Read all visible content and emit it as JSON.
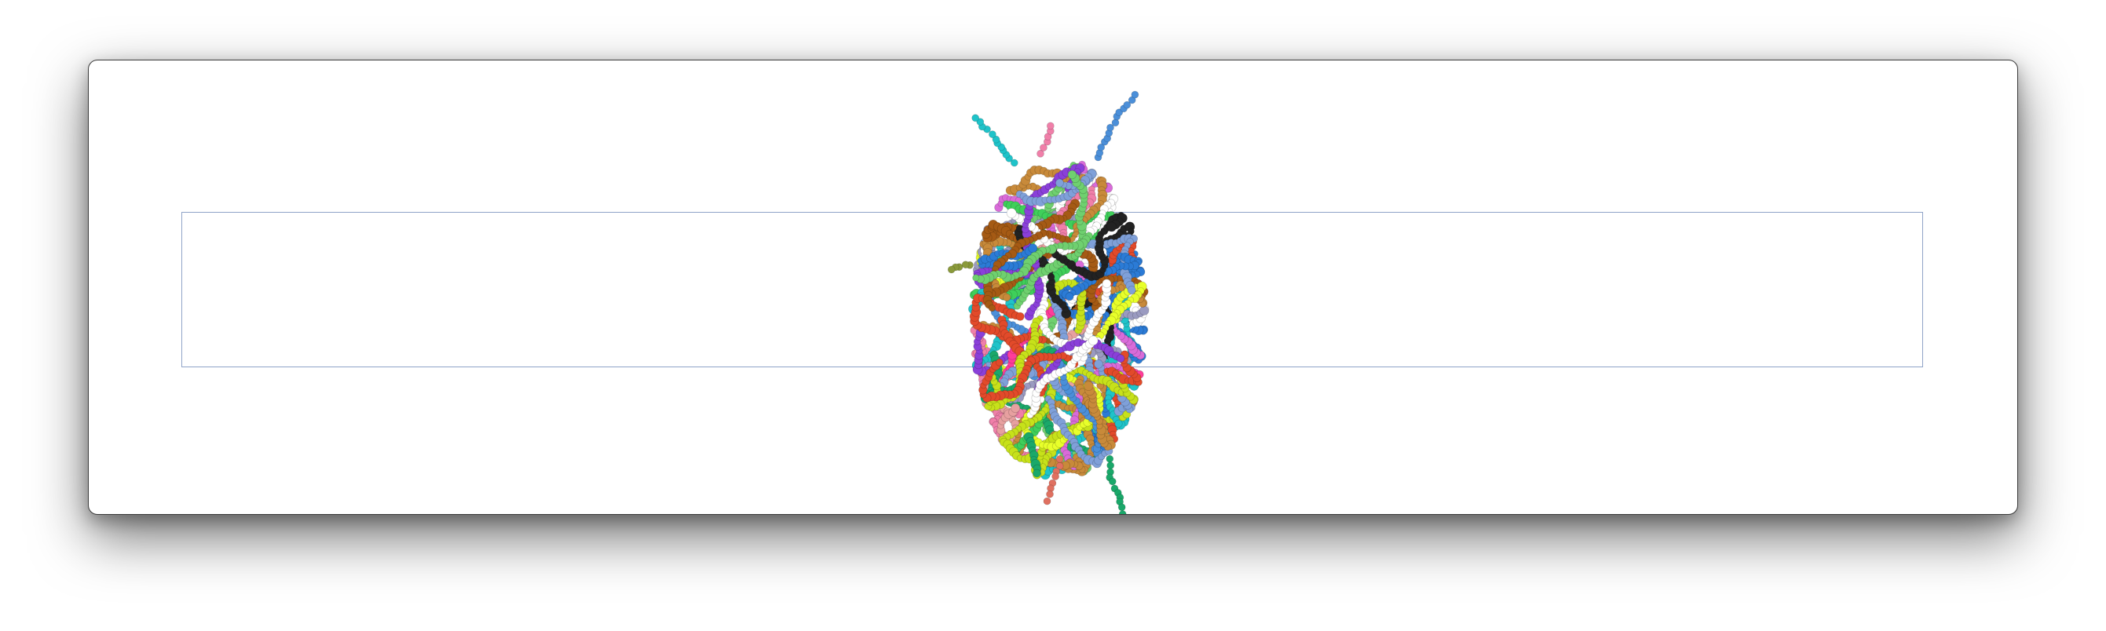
{
  "scene": {
    "background_color": "#ffffff",
    "window_border_color": "#3a3a3a",
    "bounding_box_color": "#8fa3c8",
    "subject": "multi-chain-molecular-structure",
    "chain_palette": [
      "#1fc3c9",
      "#2b7bd6",
      "#8a3fd9",
      "#c7e11a",
      "#e8ff2a",
      "#e24a2a",
      "#a55a14",
      "#3fcf5a",
      "#1aa86a",
      "#f07fa9",
      "#e7a0a0",
      "#7fa0d9",
      "#9a9ac0",
      "#4b8fd9",
      "#222222",
      "#ffffff",
      "#c88a3a",
      "#6fd06f",
      "#d96bd9",
      "#ff3c9a"
    ]
  }
}
